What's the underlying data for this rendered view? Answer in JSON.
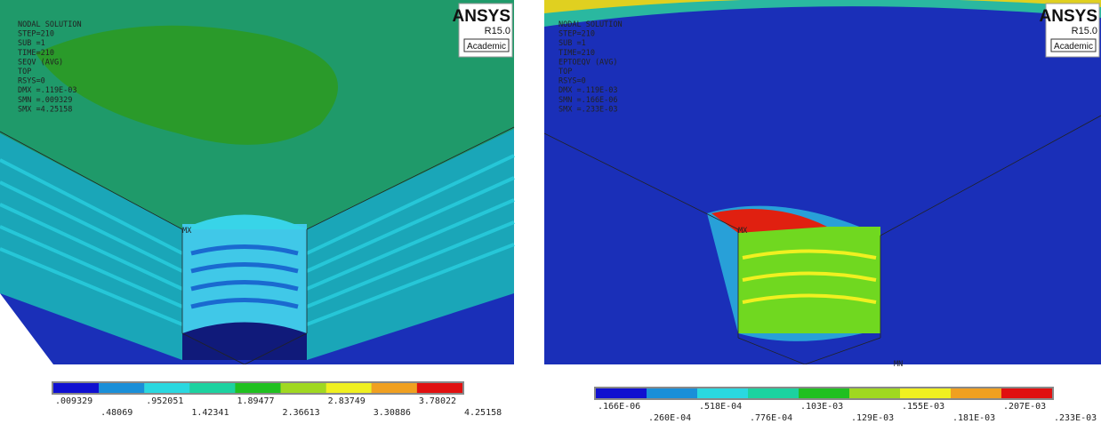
{
  "panels": [
    {
      "header": [
        "NODAL SOLUTION",
        "STEP=210",
        "SUB =1",
        "TIME=210",
        "SEQV     (AVG)",
        "TOP",
        "RSYS=0",
        "DMX =.119E-03",
        "SMN =.009329",
        "SMX =4.25158"
      ],
      "logo": {
        "brand": "ANSYS",
        "version": "R15.0",
        "edition": "Academic"
      },
      "markers": [
        "MX"
      ],
      "legend": [
        ".009329",
        ".48069",
        ".952051",
        "1.42341",
        "1.89477",
        "2.36613",
        "2.83749",
        "3.30886",
        "3.78022",
        "4.25158"
      ]
    },
    {
      "header": [
        "NODAL SOLUTION",
        "STEP=210",
        "SUB =1",
        "TIME=210",
        "EPTOEQV  (AVG)",
        "TOP",
        "RSYS=0",
        "DMX =.119E-03",
        "SMN =.166E-06",
        "SMX =.233E-03"
      ],
      "logo": {
        "brand": "ANSYS",
        "version": "R15.0",
        "edition": "Academic"
      },
      "markers": [
        "MX",
        "MN"
      ],
      "legend": [
        ".166E-06",
        ".260E-04",
        ".518E-04",
        ".776E-04",
        ".103E-03",
        ".129E-03",
        ".155E-03",
        ".181E-03",
        ".207E-03",
        ".233E-03"
      ]
    }
  ]
}
